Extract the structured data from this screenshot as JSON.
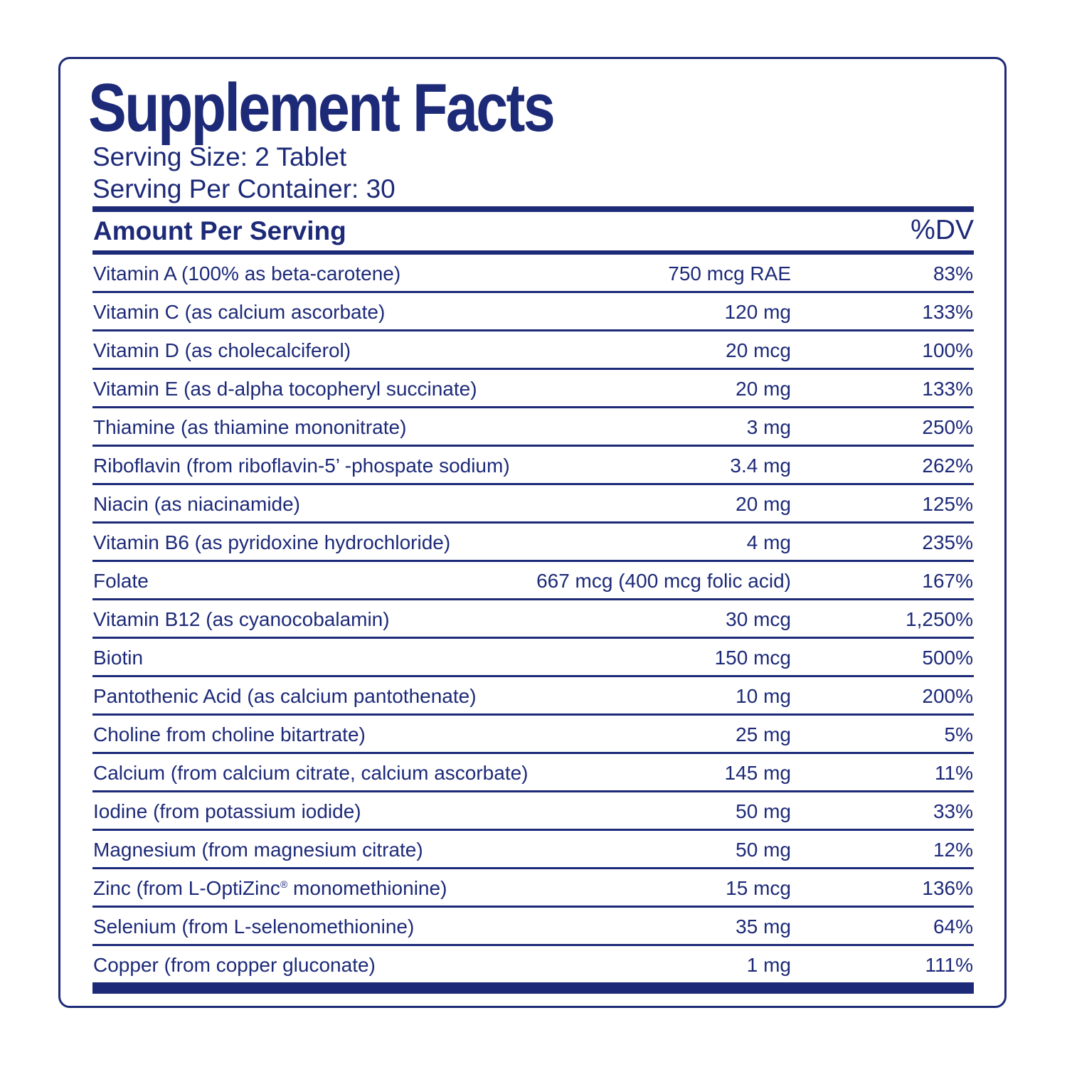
{
  "title": "Supplement Facts",
  "serving_size": "Serving Size: 2 Tablet",
  "servings_per_container": "Serving Per Container: 30",
  "header": {
    "amount_per_serving": "Amount Per Serving",
    "dv": "%DV"
  },
  "colors": {
    "ink": "#1d2a78",
    "background": "#ffffff"
  },
  "rows": [
    {
      "nutrient": "Vitamin A (100% as beta-carotene)",
      "amount": "750 mcg RAE",
      "dv": "83%"
    },
    {
      "nutrient": "Vitamin C (as calcium ascorbate)",
      "amount": "120 mg",
      "dv": "133%"
    },
    {
      "nutrient": "Vitamin D (as cholecalciferol)",
      "amount": "20 mcg",
      "dv": "100%"
    },
    {
      "nutrient": "Vitamin E (as d-alpha tocopheryl succinate)",
      "amount": "20 mg",
      "dv": "133%"
    },
    {
      "nutrient": "Thiamine (as thiamine mononitrate)",
      "amount": "3 mg",
      "dv": "250%"
    },
    {
      "nutrient": "Riboflavin (from riboflavin-5’ -phospate sodium)",
      "amount": "3.4 mg",
      "dv": "262%"
    },
    {
      "nutrient": "Niacin (as niacinamide)",
      "amount": "20 mg",
      "dv": "125%"
    },
    {
      "nutrient": "Vitamin B6 (as pyridoxine hydrochloride)",
      "amount": "4 mg",
      "dv": "235%"
    },
    {
      "nutrient": "Folate",
      "amount": "667 mcg (400 mcg folic acid)",
      "dv": "167%"
    },
    {
      "nutrient": "Vitamin B12 (as cyanocobalamin)",
      "amount": "30 mcg",
      "dv": "1,250%"
    },
    {
      "nutrient": "Biotin",
      "amount": "150 mcg",
      "dv": "500%"
    },
    {
      "nutrient": "Pantothenic Acid (as calcium pantothenate)",
      "amount": "10 mg",
      "dv": "200%"
    },
    {
      "nutrient": "Choline from choline bitartrate)",
      "amount": "25 mg",
      "dv": "5%"
    },
    {
      "nutrient": "Calcium (from calcium citrate, calcium ascorbate)",
      "amount": "145 mg",
      "dv": "11%"
    },
    {
      "nutrient": "Iodine (from potassium iodide)",
      "amount": "50 mg",
      "dv": "33%"
    },
    {
      "nutrient": "Magnesium (from magnesium citrate)",
      "amount": "50 mg",
      "dv": "12%"
    },
    {
      "nutrient_before": "Zinc (from L-OptiZinc",
      "nutrient_mark": "®",
      "nutrient_after": " monomethionine)",
      "amount": "15 mcg",
      "dv": "136%"
    },
    {
      "nutrient": "Selenium (from L-selenomethionine)",
      "amount": "35 mg",
      "dv": "64%"
    },
    {
      "nutrient": "Copper (from copper gluconate)",
      "amount": "1 mg",
      "dv": "111%"
    }
  ]
}
